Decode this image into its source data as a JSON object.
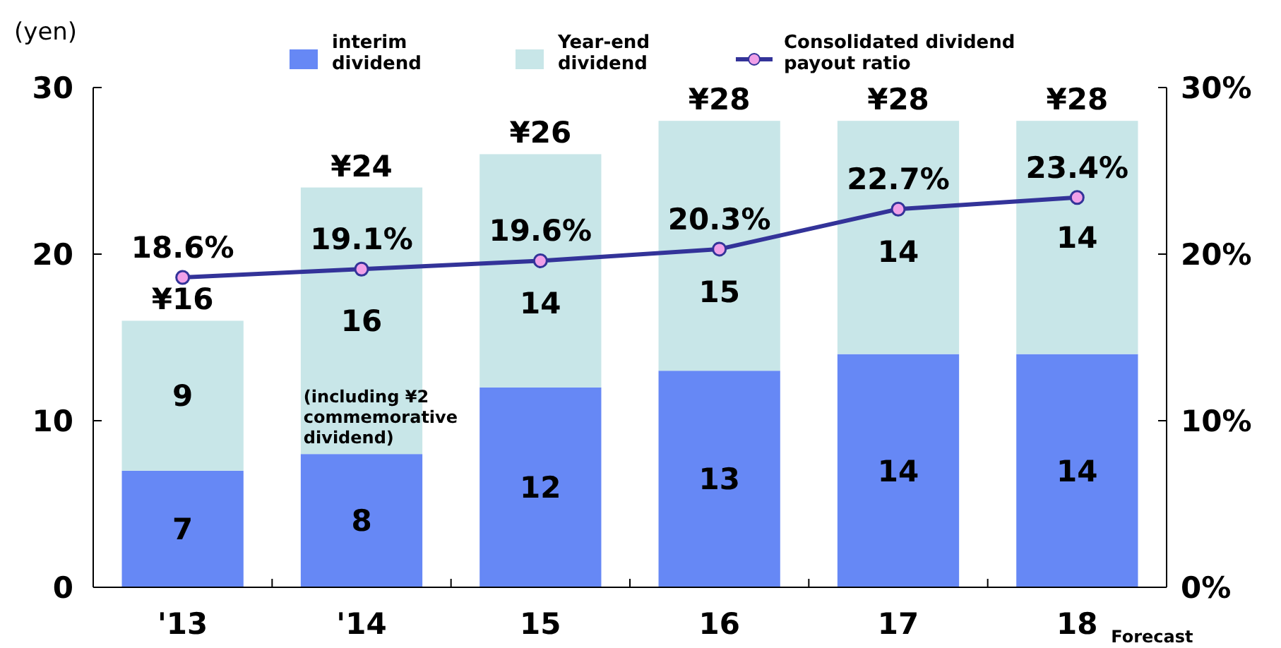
{
  "chart_data": {
    "type": "bar",
    "ylabel": "(yen)",
    "categories": [
      "'13",
      "'14",
      "15",
      "16",
      "17",
      "18"
    ],
    "stacked": true,
    "data_labels": true,
    "legend": "top",
    "grid": false,
    "ylim": [
      0,
      30
    ],
    "yticks": [
      0,
      10,
      20,
      30
    ],
    "y2lim": [
      0,
      30
    ],
    "y2ticks": [
      {
        "value": 0,
        "label": "0%"
      },
      {
        "value": 10,
        "label": "10%"
      },
      {
        "value": 20,
        "label": "20%"
      },
      {
        "value": 30,
        "label": "30%"
      }
    ],
    "totals": [
      "¥16",
      "¥24",
      "¥26",
      "¥28",
      "¥28",
      "¥28"
    ],
    "series": [
      {
        "name": "interim dividend",
        "color": "#6688f5",
        "values": [
          7,
          8,
          12,
          13,
          14,
          14
        ]
      },
      {
        "name": "Year-end dividend",
        "color": "#c8e6e8",
        "values": [
          9,
          16,
          14,
          15,
          14,
          14
        ]
      },
      {
        "type": "line",
        "axis": "y2",
        "name": "Consolidated dividend payout ratio",
        "color": "#333399",
        "marker": "circle",
        "values": [
          18.6,
          19.1,
          19.6,
          20.3,
          22.7,
          23.4
        ],
        "value_labels": [
          "18.6%",
          "19.1%",
          "19.6%",
          "20.3%",
          "22.7%",
          "23.4%"
        ]
      }
    ],
    "annotations": [
      "(including ¥2 commemorative dividend)",
      "Forecast"
    ]
  }
}
